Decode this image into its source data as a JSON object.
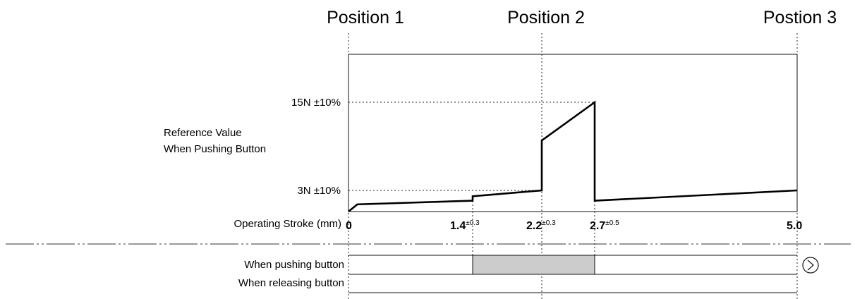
{
  "positions": [
    "Position 1",
    "Position 2",
    "Postion 3"
  ],
  "y_labels": {
    "upper": "15N ±10%",
    "lower": "3N ±10%",
    "reference_line1": "Reference Value",
    "reference_line2": "When Pushing Button"
  },
  "x_axis_label": "Operating Stroke (mm)",
  "x_ticks": [
    {
      "value": "0",
      "tol": ""
    },
    {
      "value": "1.4",
      "tol": "±0.3"
    },
    {
      "value": "2.2",
      "tol": "±0.3"
    },
    {
      "value": "2.7",
      "tol": "±0.5"
    },
    {
      "value": "5.0",
      "tol": ""
    }
  ],
  "switch_rows": {
    "pushing": "When pushing button",
    "releasing": "When releasing button"
  },
  "chart_data": {
    "type": "line",
    "xlabel": "Operating Stroke (mm)",
    "ylabel": "Reference Value When Pushing Button",
    "xlim": [
      0,
      5.0
    ],
    "y_units": "N",
    "series": [
      {
        "x": [
          0,
          0.1,
          1.4,
          1.4,
          2.2,
          2.2,
          2.7,
          2.7,
          5.0
        ],
        "y": [
          0,
          1.1,
          1.6,
          2.2,
          3.0,
          9.8,
          15.0,
          1.6,
          3.0
        ]
      }
    ],
    "y_marks": [
      3,
      15
    ],
    "pushing_on_range": [
      1.4,
      2.7
    ]
  },
  "colors": {
    "on_band": "#cccccc",
    "line": "#000000"
  }
}
